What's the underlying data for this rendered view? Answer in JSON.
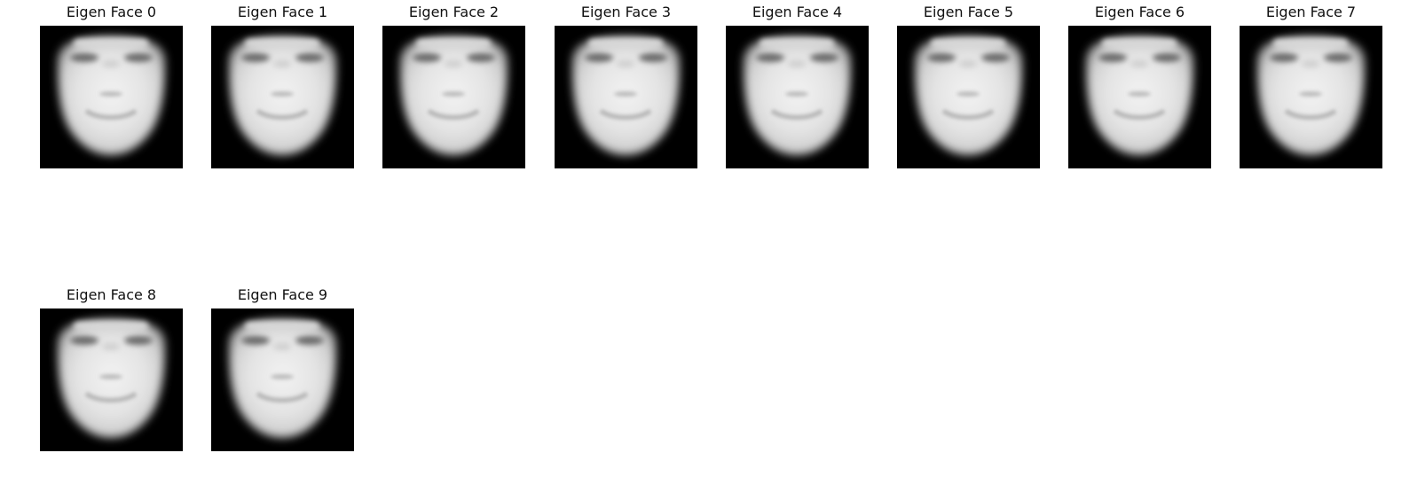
{
  "figure": {
    "colormap": "gray",
    "axes": "off",
    "panels": [
      {
        "title": "Eigen Face 0"
      },
      {
        "title": "Eigen Face 1"
      },
      {
        "title": "Eigen Face 2"
      },
      {
        "title": "Eigen Face 3"
      },
      {
        "title": "Eigen Face 4"
      },
      {
        "title": "Eigen Face 5"
      },
      {
        "title": "Eigen Face 6"
      },
      {
        "title": "Eigen Face 7"
      },
      {
        "title": "Eigen Face 8"
      },
      {
        "title": "Eigen Face 9"
      }
    ]
  }
}
